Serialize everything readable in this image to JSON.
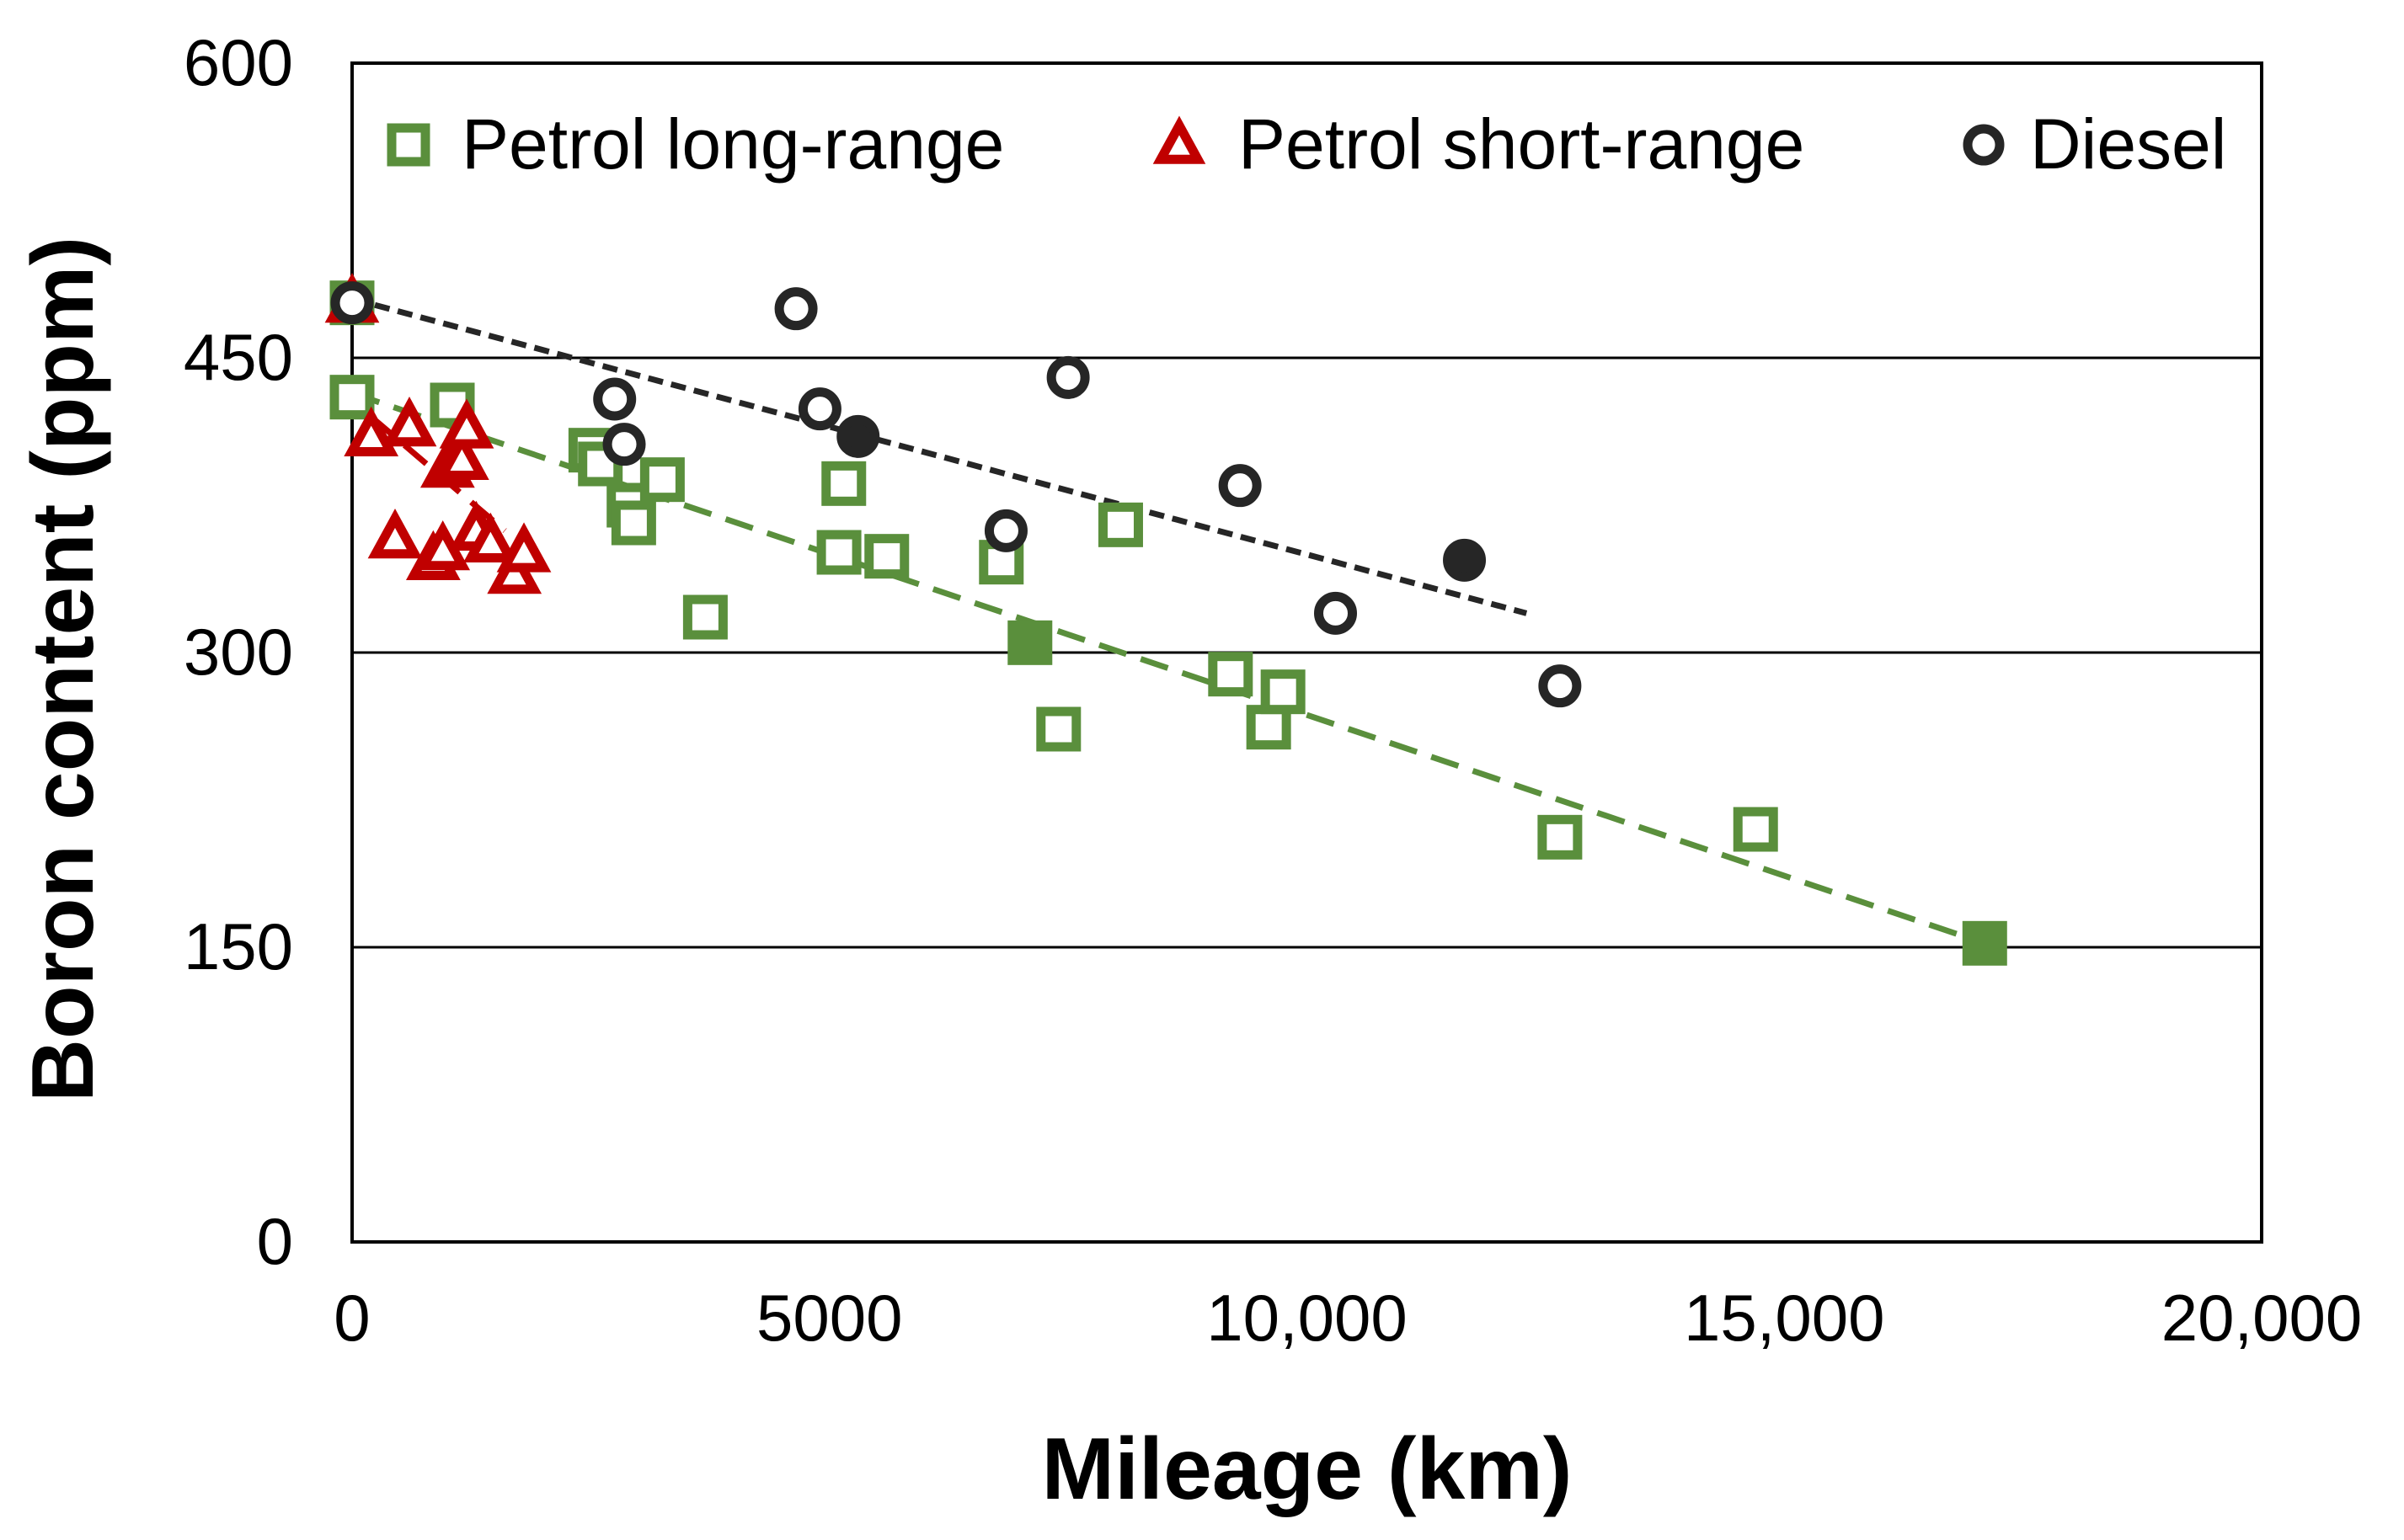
{
  "chart_data": {
    "type": "scatter",
    "title": "",
    "xlabel": "Mileage (km)",
    "ylabel": "Boron content (ppm)",
    "xlim": [
      0,
      20000
    ],
    "ylim": [
      0,
      600
    ],
    "xticks": [
      0,
      5000,
      10000,
      15000,
      20000
    ],
    "xtick_labels": [
      "0",
      "5000",
      "10,000",
      "15,000",
      "20,000"
    ],
    "yticks": [
      0,
      150,
      300,
      450,
      600
    ],
    "ytick_labels": [
      "0",
      "150",
      "300",
      "450",
      "600"
    ],
    "grid": "horizontal",
    "legend_position": "top",
    "series": [
      {
        "name": "Petrol long-range",
        "marker": "square",
        "color": "#5a8f3c",
        "points": [
          {
            "x": 0,
            "y": 478
          },
          {
            "x": 0,
            "y": 430
          },
          {
            "x": 1050,
            "y": 426
          },
          {
            "x": 2500,
            "y": 403
          },
          {
            "x": 2600,
            "y": 396
          },
          {
            "x": 2900,
            "y": 375
          },
          {
            "x": 2950,
            "y": 366
          },
          {
            "x": 3250,
            "y": 388
          },
          {
            "x": 3700,
            "y": 318
          },
          {
            "x": 5150,
            "y": 386
          },
          {
            "x": 5100,
            "y": 351
          },
          {
            "x": 5600,
            "y": 349
          },
          {
            "x": 6800,
            "y": 346
          },
          {
            "x": 7100,
            "y": 305
          },
          {
            "x": 7400,
            "y": 261
          },
          {
            "x": 8050,
            "y": 365
          },
          {
            "x": 9200,
            "y": 289
          },
          {
            "x": 9600,
            "y": 262
          },
          {
            "x": 9750,
            "y": 280
          },
          {
            "x": 12650,
            "y": 206
          },
          {
            "x": 14700,
            "y": 210
          },
          {
            "x": 17100,
            "y": 152
          }
        ],
        "filled_points": [
          7100,
          17100
        ]
      },
      {
        "name": "Petrol short-range",
        "marker": "triangle",
        "color": "#c00000",
        "points": [
          {
            "x": 0,
            "y": 478
          },
          {
            "x": 200,
            "y": 410
          },
          {
            "x": 600,
            "y": 415
          },
          {
            "x": 450,
            "y": 358
          },
          {
            "x": 850,
            "y": 347
          },
          {
            "x": 950,
            "y": 352
          },
          {
            "x": 1000,
            "y": 394
          },
          {
            "x": 1150,
            "y": 398
          },
          {
            "x": 1200,
            "y": 414
          },
          {
            "x": 1300,
            "y": 362
          },
          {
            "x": 1450,
            "y": 356
          },
          {
            "x": 1700,
            "y": 340
          },
          {
            "x": 1800,
            "y": 351
          }
        ]
      },
      {
        "name": "Diesel",
        "marker": "circle",
        "color": "#262626",
        "points": [
          {
            "x": 0,
            "y": 478
          },
          {
            "x": 2750,
            "y": 429
          },
          {
            "x": 2850,
            "y": 406
          },
          {
            "x": 4650,
            "y": 475
          },
          {
            "x": 4900,
            "y": 424
          },
          {
            "x": 5300,
            "y": 410
          },
          {
            "x": 6850,
            "y": 362
          },
          {
            "x": 7500,
            "y": 440
          },
          {
            "x": 9300,
            "y": 385
          },
          {
            "x": 10300,
            "y": 320
          },
          {
            "x": 11650,
            "y": 347
          },
          {
            "x": 12650,
            "y": 283
          }
        ],
        "filled_points": [
          5300,
          11650
        ]
      }
    ],
    "trendlines": [
      {
        "series": "Petrol long-range",
        "style": "dashed",
        "x": [
          0,
          17100
        ],
        "y": [
          432,
          152
        ]
      },
      {
        "series": "Petrol short-range",
        "style": "dashed",
        "x": [
          200,
          1600
        ],
        "y": [
          420,
          362
        ]
      },
      {
        "series": "Diesel",
        "style": "dashed",
        "x": [
          0,
          12300
        ],
        "y": [
          480,
          320
        ]
      }
    ]
  }
}
